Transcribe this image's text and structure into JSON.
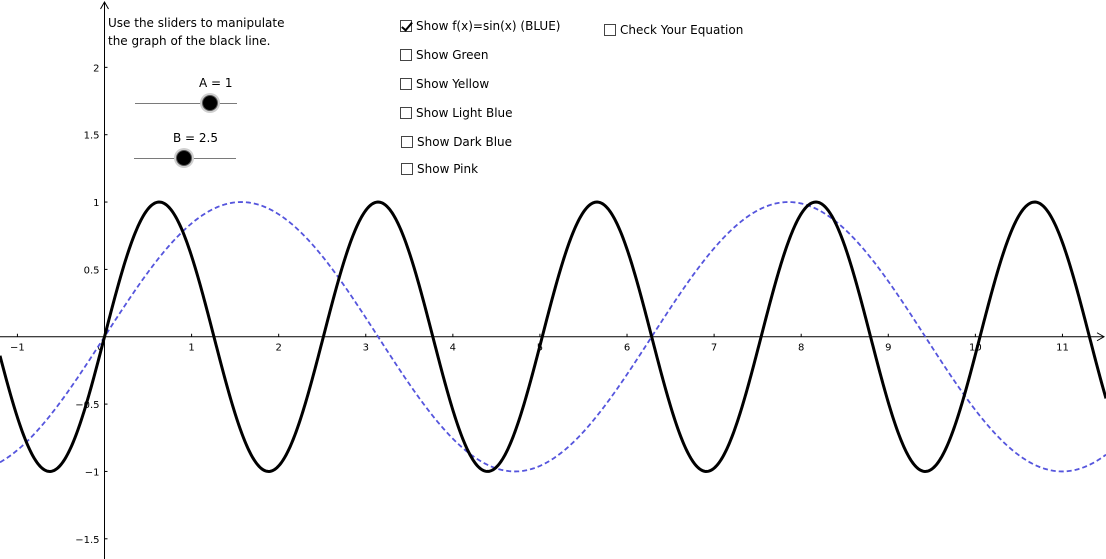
{
  "instructions": {
    "line1": "Use the sliders to manipulate",
    "line2": "the graph of the black line."
  },
  "sliders": {
    "a": {
      "label": "A = 1",
      "value": 1,
      "min": -5,
      "max": 5
    },
    "b": {
      "label": "B = 2.5",
      "value": 2.5,
      "min": -5,
      "max": 10
    }
  },
  "checkboxes": [
    {
      "label": "Show f(x)=sin(x) (BLUE)",
      "checked": true
    },
    {
      "label": "Show Green",
      "checked": false
    },
    {
      "label": "Show Yellow",
      "checked": false
    },
    {
      "label": "Show Light Blue",
      "checked": false
    },
    {
      "label": "Show Dark Blue",
      "checked": false
    },
    {
      "label": "Show Pink",
      "checked": false
    }
  ],
  "check_equation": {
    "label": "Check Your Equation",
    "checked": false
  },
  "colors": {
    "black_curve": "#000000",
    "blue_curve": "#5555dd",
    "axis": "#000000"
  },
  "chart_data": {
    "type": "line",
    "xlim": [
      -1.2,
      11.5
    ],
    "ylim": [
      -1.65,
      2.5
    ],
    "x_ticks": [
      -1,
      0,
      1,
      2,
      3,
      4,
      5,
      6,
      7,
      8,
      9,
      10,
      11
    ],
    "x_tick_labels": [
      "−1",
      "0",
      "1",
      "2",
      "3",
      "4",
      "5",
      "6",
      "7",
      "8",
      "9",
      "10",
      "11"
    ],
    "y_ticks": [
      -1.5,
      -1,
      -0.5,
      0.5,
      1,
      1.5,
      2
    ],
    "y_tick_labels": [
      "−1.5",
      "−1",
      "−0.5",
      "0.5",
      "1",
      "1.5",
      "2"
    ],
    "series": [
      {
        "function": "sin(2.5x)",
        "color": "#000000",
        "style": "solid",
        "amplitude": 1,
        "frequency": 2.5
      },
      {
        "function": "sin(x)",
        "color": "#5555dd",
        "style": "dashed",
        "amplitude": 1,
        "frequency": 1
      }
    ]
  }
}
